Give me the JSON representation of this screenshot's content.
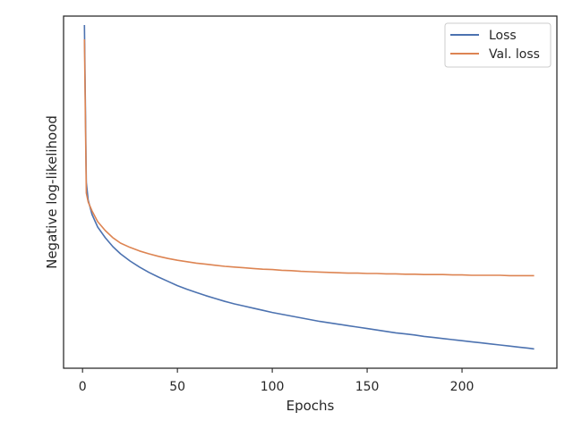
{
  "chart_data": {
    "type": "line",
    "xlabel": "Epochs",
    "ylabel": "Negative log-likelihood",
    "xlim": [
      -10,
      250
    ],
    "ylim": [
      0,
      1
    ],
    "x_ticks": [
      0,
      50,
      100,
      150,
      200
    ],
    "y_ticks_visible": false,
    "grid": false,
    "legend_position": "top-right",
    "series": [
      {
        "name": "Loss",
        "color": "#4c72b0",
        "x": [
          1,
          2,
          3,
          5,
          8,
          12,
          16,
          20,
          25,
          30,
          35,
          40,
          45,
          50,
          55,
          60,
          65,
          70,
          75,
          80,
          85,
          90,
          95,
          100,
          105,
          110,
          115,
          120,
          125,
          130,
          135,
          140,
          145,
          150,
          155,
          160,
          165,
          170,
          175,
          180,
          185,
          190,
          195,
          200,
          205,
          210,
          215,
          220,
          225,
          230,
          235,
          238
        ],
        "values": [
          0.96,
          0.52,
          0.47,
          0.43,
          0.395,
          0.365,
          0.34,
          0.32,
          0.3,
          0.283,
          0.268,
          0.255,
          0.243,
          0.231,
          0.221,
          0.212,
          0.203,
          0.195,
          0.187,
          0.18,
          0.174,
          0.168,
          0.162,
          0.156,
          0.151,
          0.146,
          0.141,
          0.136,
          0.131,
          0.127,
          0.123,
          0.119,
          0.115,
          0.111,
          0.107,
          0.103,
          0.099,
          0.096,
          0.093,
          0.089,
          0.086,
          0.083,
          0.08,
          0.077,
          0.074,
          0.071,
          0.068,
          0.065,
          0.062,
          0.059,
          0.056,
          0.054
        ]
      },
      {
        "name": "Val. loss",
        "color": "#dd8452",
        "x": [
          1,
          2,
          3,
          5,
          8,
          12,
          16,
          20,
          25,
          30,
          35,
          40,
          45,
          50,
          55,
          60,
          65,
          70,
          75,
          80,
          85,
          90,
          95,
          100,
          105,
          110,
          115,
          120,
          125,
          130,
          135,
          140,
          145,
          150,
          155,
          160,
          165,
          170,
          175,
          180,
          185,
          190,
          195,
          200,
          205,
          210,
          215,
          220,
          225,
          230,
          235,
          238
        ],
        "values": [
          0.92,
          0.49,
          0.465,
          0.44,
          0.41,
          0.385,
          0.365,
          0.35,
          0.338,
          0.328,
          0.32,
          0.313,
          0.307,
          0.302,
          0.298,
          0.294,
          0.291,
          0.288,
          0.285,
          0.283,
          0.281,
          0.279,
          0.277,
          0.276,
          0.274,
          0.273,
          0.271,
          0.27,
          0.269,
          0.268,
          0.267,
          0.266,
          0.266,
          0.265,
          0.265,
          0.264,
          0.264,
          0.263,
          0.263,
          0.262,
          0.262,
          0.262,
          0.261,
          0.261,
          0.26,
          0.26,
          0.26,
          0.26,
          0.259,
          0.259,
          0.259,
          0.259
        ]
      }
    ]
  }
}
